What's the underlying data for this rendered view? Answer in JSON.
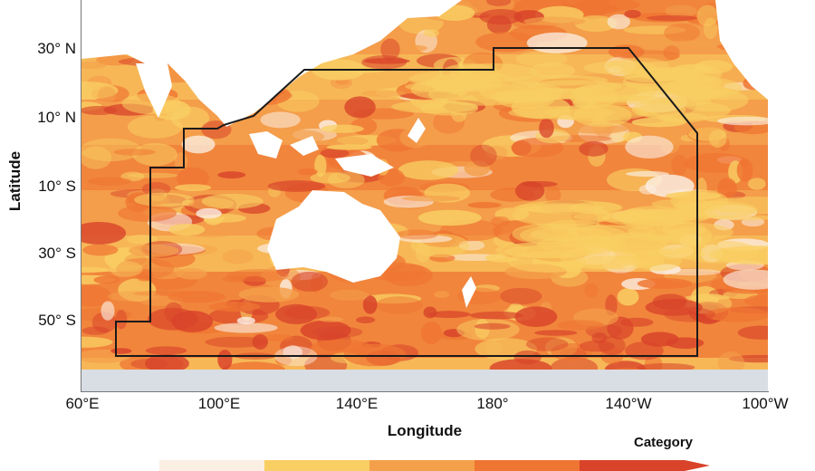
{
  "map": {
    "y_axis_label": "Latitude",
    "x_axis_label": "Longitude",
    "lat_ticks": [
      "30° N",
      "10° N",
      "10° S",
      "30° S",
      "50° S"
    ],
    "lon_ticks": [
      "60°E",
      "100°E",
      "140°E",
      "180°",
      "140°W",
      "100°W"
    ],
    "colors": {
      "ocean_base": "#f49a4a",
      "cat1": "#fbeee2",
      "cat2": "#f9cf63",
      "cat3": "#f4a04b",
      "cat4": "#ef7532",
      "cat5": "#d8432a",
      "land": "#ffffff",
      "ice": "#d9dde4",
      "boundary": "#1a1a1a"
    }
  },
  "legend": {
    "title": "Category",
    "colors": [
      "#fbeee2",
      "#f9cf63",
      "#f4a04b",
      "#ef7532",
      "#d8432a"
    ]
  }
}
